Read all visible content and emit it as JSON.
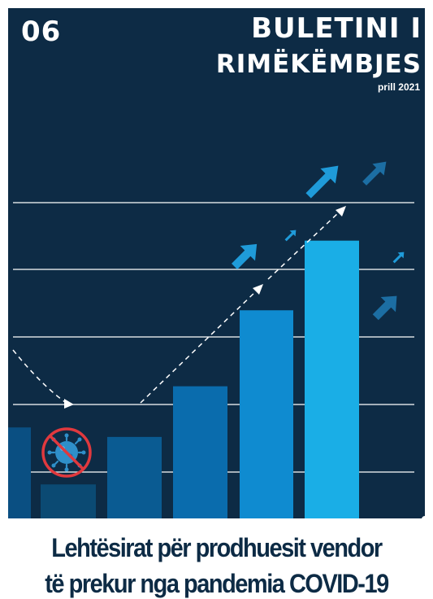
{
  "cover": {
    "issue_number": "06",
    "title_line1": "BULETINI I",
    "title_line2": "RIMËKËMBJES",
    "date": "prill 2021"
  },
  "headline": {
    "line1": "Lehtësirat për prodhuesit vendor",
    "line2": "të prekur nga pandemia COVID-19"
  },
  "illustration": {
    "bar_levels": [
      0.29,
      0.11,
      0.26,
      0.42,
      0.66,
      0.88
    ],
    "icons": [
      "virus-icon",
      "no-entry-icon",
      "trend-arrow-icon"
    ]
  },
  "colors": {
    "background": "#0d2b45",
    "bars": [
      "#0a4f82",
      "#0b4a73",
      "#0a5b92",
      "#0a6cad",
      "#0f8bd0",
      "#1aaee6"
    ],
    "arrow_bright": "#1f9bd9",
    "arrow_dim": "#1c6ea3",
    "no_entry": "#e0393e",
    "headline_text": "#0d2b45"
  }
}
